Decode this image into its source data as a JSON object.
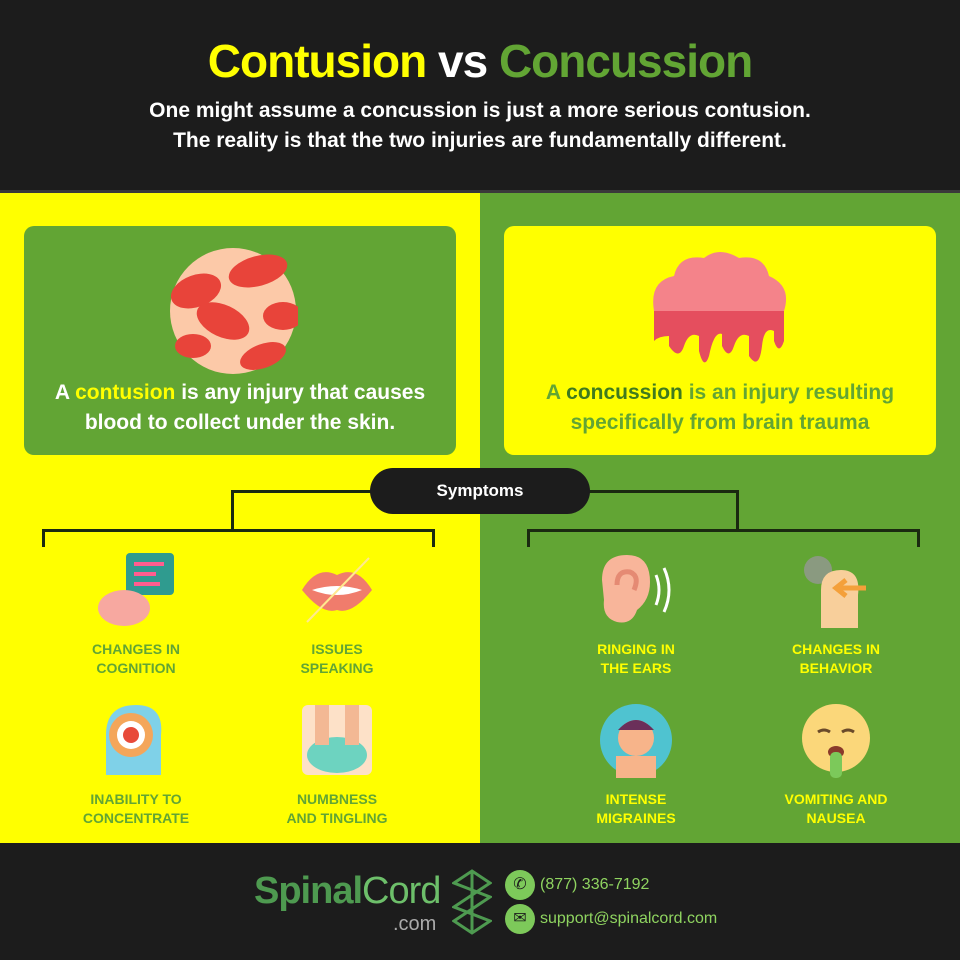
{
  "header": {
    "title_part1": "Contusion",
    "title_vs": "vs",
    "title_part2": "Concussion",
    "subtitle_line1": "One might assume a concussion is just a more serious contusion.",
    "subtitle_line2": "The reality is that the two injuries are fundamentally different."
  },
  "contusion": {
    "pre": "A ",
    "term": "contusion",
    "post": " is any injury that causes",
    "line2": "blood to collect under the skin.",
    "icon": "blood-cells-icon"
  },
  "concussion": {
    "pre": "A ",
    "term": "concussion",
    "post": " is an injury resulting",
    "line2": "specifically from brain trauma",
    "icon": "melting-brain-icon"
  },
  "symptoms_label": "Symptoms",
  "contusion_symptoms": [
    {
      "l1": "CHANGES IN",
      "l2": "COGNITION",
      "icon": "brain-chart-icon"
    },
    {
      "l1": "ISSUES",
      "l2": "SPEAKING",
      "icon": "mouth-icon"
    },
    {
      "l1": "INABILITY TO",
      "l2": "CONCENTRATE",
      "icon": "head-target-icon"
    },
    {
      "l1": "NUMBNESS",
      "l2": "AND TINGLING",
      "icon": "feet-icon"
    }
  ],
  "concussion_symptoms": [
    {
      "l1": "RINGING IN",
      "l2": "THE EARS",
      "icon": "ear-icon"
    },
    {
      "l1": "CHANGES IN",
      "l2": "BEHAVIOR",
      "icon": "head-gear-icon"
    },
    {
      "l1": "INTENSE",
      "l2": "MIGRAINES",
      "icon": "headache-icon"
    },
    {
      "l1": "VOMITING AND",
      "l2": "NAUSEA",
      "icon": "nausea-face-icon"
    }
  ],
  "footer": {
    "brand1": "Spinal",
    "brand2": "Cord",
    "brand_suffix": ".com",
    "phone": "(877) 336-7192",
    "email": "support@spinalcord.com"
  },
  "colors": {
    "yellow": "#ffff00",
    "green": "#62a534",
    "dark": "#1c1c1c"
  }
}
